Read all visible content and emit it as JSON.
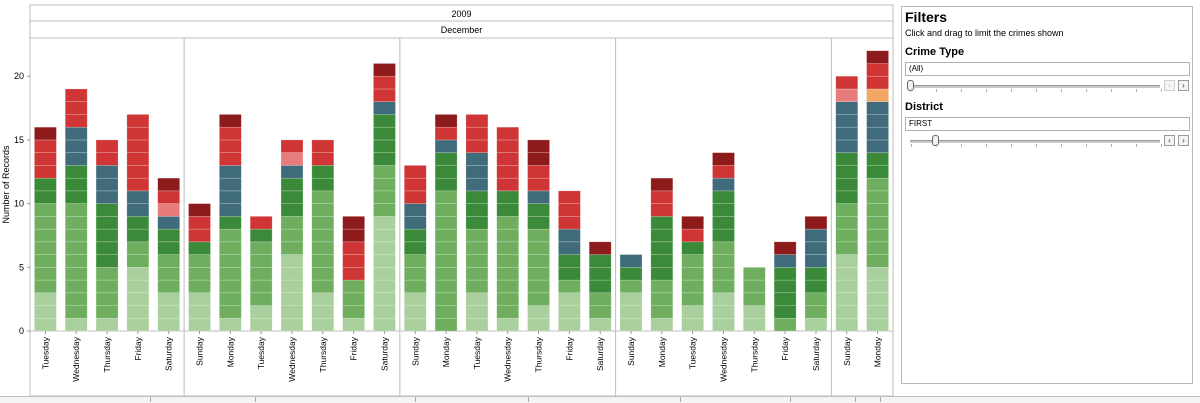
{
  "chart_data": {
    "type": "bar",
    "title": "",
    "column_header_year": "2009",
    "column_header_month": "December",
    "ylabel": "Number of Records",
    "ylim": [
      0,
      23
    ],
    "yticks": [
      "0",
      "5",
      "10",
      "15",
      "20"
    ],
    "categories": [
      "Tuesday",
      "Wednesday",
      "Thursday",
      "Friday",
      "Saturday",
      "Sunday",
      "Monday",
      "Tuesday",
      "Wednesday",
      "Thursday",
      "Friday",
      "Saturday",
      "Sunday",
      "Monday",
      "Tuesday",
      "Wednesday",
      "Thursday",
      "Friday",
      "Saturday",
      "Sunday",
      "Monday",
      "Tuesday",
      "Wednesday",
      "Thursday",
      "Friday",
      "Saturday",
      "Sunday",
      "Monday"
    ],
    "week_groups": [
      5,
      7,
      7,
      7,
      2
    ],
    "series": [
      {
        "color": "#a9cf9c",
        "values": [
          3,
          1,
          1,
          5,
          3,
          3,
          1,
          2,
          6,
          3,
          1,
          9,
          3,
          0,
          3,
          1,
          2,
          3,
          1,
          3,
          1,
          2,
          3,
          2,
          0,
          1,
          6,
          5
        ]
      },
      {
        "color": "#6fae5f",
        "values": [
          7,
          9,
          4,
          2,
          3,
          3,
          7,
          5,
          3,
          8,
          3,
          4,
          3,
          11,
          5,
          8,
          6,
          1,
          2,
          1,
          3,
          4,
          4,
          3,
          1,
          2,
          4,
          7
        ]
      },
      {
        "color": "#3a8a3a",
        "values": [
          2,
          3,
          5,
          2,
          2,
          1,
          1,
          1,
          3,
          2,
          0,
          4,
          2,
          3,
          3,
          2,
          2,
          2,
          3,
          1,
          5,
          1,
          4,
          0,
          4,
          2,
          4,
          2
        ]
      },
      {
        "color": "#3f6b7a",
        "values": [
          0,
          3,
          3,
          2,
          1,
          0,
          4,
          0,
          1,
          0,
          0,
          1,
          2,
          1,
          3,
          0,
          1,
          2,
          0,
          1,
          0,
          0,
          1,
          0,
          1,
          3,
          4,
          4
        ]
      },
      {
        "color": "#f4a664",
        "values": [
          0,
          0,
          0,
          0,
          0,
          0,
          0,
          0,
          0,
          0,
          0,
          0,
          0,
          0,
          0,
          0,
          0,
          0,
          0,
          0,
          0,
          0,
          0,
          0,
          0,
          0,
          0,
          1
        ]
      },
      {
        "color": "#e87c7c",
        "values": [
          0,
          0,
          0,
          0,
          1,
          0,
          0,
          0,
          1,
          0,
          0,
          0,
          0,
          0,
          0,
          0,
          0,
          0,
          0,
          0,
          0,
          0,
          0,
          0,
          0,
          0,
          1,
          0
        ]
      },
      {
        "color": "#d03535",
        "values": [
          3,
          3,
          2,
          6,
          1,
          2,
          3,
          1,
          1,
          2,
          3,
          2,
          3,
          1,
          3,
          5,
          2,
          3,
          0,
          0,
          2,
          1,
          1,
          0,
          0,
          0,
          1,
          2
        ]
      },
      {
        "color": "#8e1b1b",
        "values": [
          1,
          0,
          0,
          0,
          1,
          1,
          1,
          0,
          0,
          0,
          2,
          1,
          0,
          1,
          0,
          0,
          2,
          0,
          1,
          0,
          1,
          1,
          1,
          0,
          1,
          1,
          0,
          1
        ]
      }
    ],
    "colors": {
      "grid": "#cfcfcf",
      "axis": "#999999",
      "separator": "#bdbdbd"
    },
    "grid": false
  },
  "filters": {
    "title": "Filters",
    "subtitle": "Click and drag to limit the crimes shown",
    "crime_type": {
      "label": "Crime Type",
      "value": "(All)",
      "level": 0.0
    },
    "district": {
      "label": "District",
      "value": "FIRST",
      "level": 0.1
    }
  },
  "tabs": {
    "count": 10
  }
}
